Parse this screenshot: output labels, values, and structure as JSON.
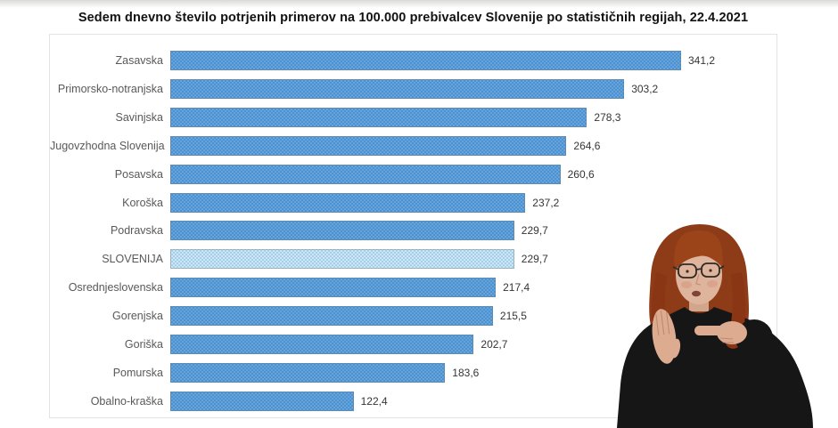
{
  "page": {
    "background_color": "#ffffff",
    "kind": "broadcast video frame with bar chart and sign-language interpreter"
  },
  "chart_data": {
    "type": "bar",
    "orientation": "horizontal",
    "title": "Sedem dnevno število potrjenih primerov na 100.000 prebivalcev Slovenije po statističnih regijah, 22.4.2021",
    "categories": [
      "Zasavska",
      "Primorsko-notranjska",
      "Savinjska",
      "Jugovzhodna Slovenija",
      "Posavska",
      "Koroška",
      "Podravska",
      "SLOVENIJA",
      "Osrednjeslovenska",
      "Gorenjska",
      "Goriška",
      "Pomurska",
      "Obalno-kraška"
    ],
    "values": [
      341.2,
      303.2,
      278.3,
      264.6,
      260.6,
      237.2,
      229.7,
      229.7,
      217.4,
      215.5,
      202.7,
      183.6,
      122.4
    ],
    "value_labels": [
      "341,2",
      "303,2",
      "278,3",
      "264,6",
      "260,6",
      "237,2",
      "229,7",
      "229,7",
      "217,4",
      "215,5",
      "202,7",
      "183,6",
      "122,4"
    ],
    "highlight_index": 7,
    "highlight_category": "SLOVENIJA",
    "bar_color": "#4b92d2",
    "highlight_bar_color": "#a6cfeb",
    "xlabel": "",
    "ylabel": "",
    "xlim": [
      0,
      341.2
    ],
    "grid": false,
    "legend": false,
    "data_labels": "outside end, Slovenian decimal comma"
  },
  "overlay": {
    "interpreter": {
      "name": "sign-language-interpreter",
      "hair_color": "#96431b",
      "skin_color": "#dfb49c",
      "clothing_color": "#161616"
    }
  }
}
